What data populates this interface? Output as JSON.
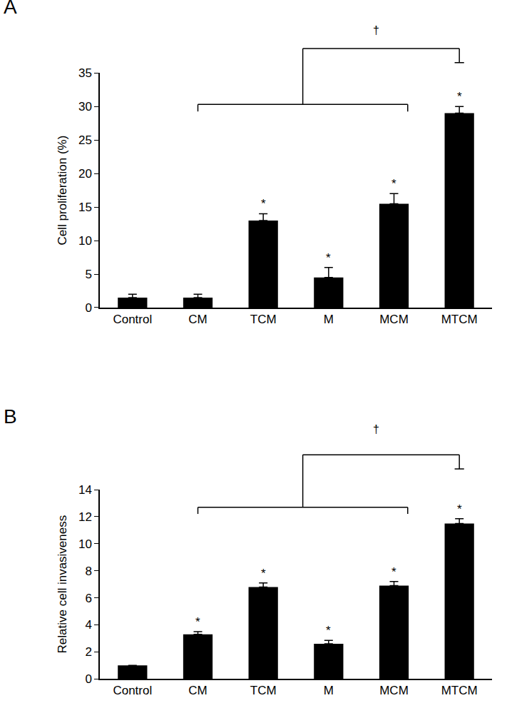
{
  "chart_data": [
    {
      "type": "bar",
      "panel": "A",
      "categories": [
        "Control",
        "CM",
        "TCM",
        "M",
        "MCM",
        "MTCM"
      ],
      "values": [
        1.5,
        1.5,
        13,
        4.5,
        15.5,
        29
      ],
      "error": [
        0.5,
        0.5,
        1,
        1.5,
        1.5,
        1
      ],
      "color": "#000000",
      "y_label": "Cell proliferation (%)",
      "ylim": [
        0,
        35
      ],
      "yticks": [
        0,
        5,
        10,
        15,
        20,
        25,
        30,
        35
      ],
      "annotations": [
        {
          "text": "*",
          "category": "TCM"
        },
        {
          "text": "*",
          "category": "M"
        },
        {
          "text": "*",
          "category": "MCM"
        },
        {
          "text": "*",
          "category": "MTCM"
        }
      ],
      "bracket": {
        "text": "†",
        "from": "CM",
        "to": "MCM",
        "versus": "MTCM"
      }
    },
    {
      "type": "bar",
      "panel": "B",
      "categories": [
        "Control",
        "CM",
        "TCM",
        "M",
        "MCM",
        "MTCM"
      ],
      "values": [
        1,
        3.3,
        6.8,
        2.6,
        6.9,
        11.5
      ],
      "error": [
        0,
        0.2,
        0.3,
        0.25,
        0.3,
        0.35
      ],
      "color": "#000000",
      "y_label": "Relative cell invasiveness",
      "ylim": [
        0,
        14
      ],
      "yticks": [
        0,
        2,
        4,
        6,
        8,
        10,
        12,
        14
      ],
      "annotations": [
        {
          "text": "*",
          "category": "CM"
        },
        {
          "text": "*",
          "category": "TCM"
        },
        {
          "text": "*",
          "category": "M"
        },
        {
          "text": "*",
          "category": "MCM"
        },
        {
          "text": "*",
          "category": "MTCM"
        }
      ],
      "bracket": {
        "text": "†",
        "from": "CM",
        "to": "MCM",
        "versus": "MTCM"
      }
    }
  ]
}
